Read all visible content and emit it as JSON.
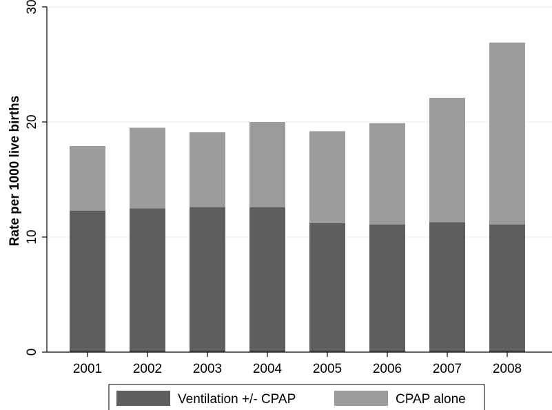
{
  "chart_data": {
    "type": "bar",
    "stacked": true,
    "categories": [
      "2001",
      "2002",
      "2003",
      "2004",
      "2005",
      "2006",
      "2007",
      "2008"
    ],
    "series": [
      {
        "name": "Ventilation +/- CPAP",
        "color": "#5e5e5e",
        "values": [
          12.3,
          12.5,
          12.6,
          12.6,
          11.2,
          11.1,
          11.3,
          11.1
        ]
      },
      {
        "name": "CPAP alone",
        "color": "#9c9c9c",
        "values": [
          5.6,
          7.0,
          6.5,
          7.4,
          8.0,
          8.8,
          10.8,
          15.8
        ]
      }
    ],
    "ylabel": "Rate per 1000 live births",
    "yticks": [
      0,
      10,
      20,
      30
    ],
    "ylim": [
      0,
      30
    ],
    "grid": true,
    "legend_position": "bottom"
  }
}
